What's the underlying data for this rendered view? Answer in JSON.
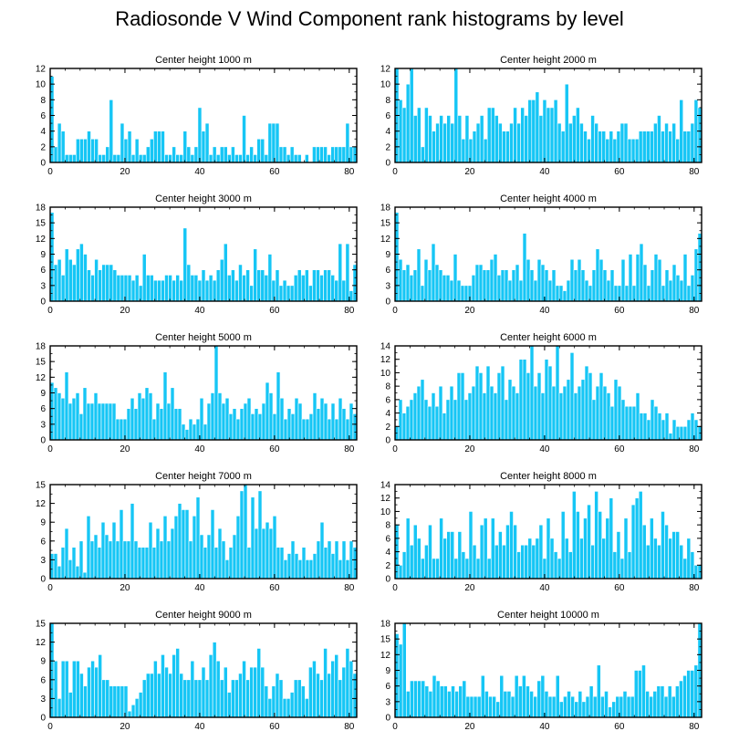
{
  "figure": {
    "title": "Radiosonde V Wind Component rank histograms by level"
  },
  "style": {
    "bar_color": "#16c6f5",
    "bar_stroke": "#ffffff",
    "axis_color": "#000000"
  },
  "chart_data": [
    {
      "type": "bar",
      "title": "Center height 1000 m",
      "x_ticks": [
        0,
        20,
        40,
        60,
        80
      ],
      "xlim": [
        0,
        82
      ],
      "ylim": [
        0,
        12
      ],
      "y_ticks": [
        0,
        2,
        4,
        6,
        8,
        10,
        12
      ],
      "values": [
        11,
        2,
        5,
        4,
        1,
        1,
        1,
        3,
        3,
        3,
        4,
        3,
        3,
        1,
        1,
        2,
        8,
        1,
        1,
        5,
        3,
        4,
        1,
        3,
        1,
        1,
        2,
        3,
        4,
        4,
        4,
        1,
        1,
        2,
        1,
        1,
        4,
        2,
        1,
        2,
        7,
        4,
        5,
        1,
        2,
        1,
        2,
        2,
        1,
        2,
        1,
        1,
        6,
        1,
        2,
        1,
        3,
        3,
        1,
        5,
        5,
        5,
        2,
        2,
        1,
        2,
        1,
        1,
        0,
        1,
        0,
        2,
        2,
        2,
        2,
        1,
        2,
        2,
        2,
        2,
        5,
        2,
        2
      ]
    },
    {
      "type": "bar",
      "title": "Center height 2000 m",
      "x_ticks": [
        0,
        20,
        40,
        60,
        80
      ],
      "xlim": [
        0,
        82
      ],
      "ylim": [
        0,
        12
      ],
      "y_ticks": [
        0,
        2,
        4,
        6,
        8,
        10,
        12
      ],
      "values": [
        12,
        8,
        7,
        10,
        12,
        6,
        7,
        2,
        7,
        6,
        4,
        5,
        6,
        5,
        6,
        5,
        12,
        6,
        3,
        6,
        3,
        4,
        5,
        6,
        3,
        7,
        7,
        6,
        5,
        4,
        4,
        5,
        7,
        5,
        7,
        6,
        8,
        8,
        9,
        6,
        8,
        7,
        7,
        8,
        5,
        4,
        10,
        5,
        6,
        7,
        5,
        4,
        3,
        6,
        5,
        4,
        4,
        3,
        4,
        3,
        4,
        5,
        5,
        3,
        3,
        3,
        4,
        4,
        4,
        4,
        5,
        6,
        4,
        5,
        4,
        5,
        3,
        8,
        4,
        4,
        5,
        8,
        7
      ]
    },
    {
      "type": "bar",
      "title": "Center height 3000 m",
      "x_ticks": [
        0,
        20,
        40,
        60,
        80
      ],
      "xlim": [
        0,
        82
      ],
      "ylim": [
        0,
        18
      ],
      "y_ticks": [
        0,
        3,
        6,
        9,
        12,
        15,
        18
      ],
      "values": [
        17,
        7,
        8,
        5,
        10,
        8,
        7,
        10,
        11,
        9,
        6,
        5,
        8,
        6,
        7,
        7,
        7,
        6,
        5,
        5,
        5,
        5,
        4,
        5,
        3,
        9,
        5,
        5,
        4,
        4,
        4,
        5,
        5,
        4,
        5,
        4,
        14,
        7,
        5,
        5,
        4,
        6,
        4,
        5,
        4,
        6,
        8,
        11,
        5,
        6,
        4,
        7,
        5,
        6,
        3,
        10,
        6,
        6,
        5,
        9,
        4,
        6,
        3,
        4,
        3,
        3,
        5,
        6,
        5,
        6,
        3,
        6,
        6,
        5,
        6,
        6,
        5,
        4,
        11,
        4,
        11,
        2,
        7
      ]
    },
    {
      "type": "bar",
      "title": "Center height 4000 m",
      "x_ticks": [
        0,
        20,
        40,
        60,
        80
      ],
      "xlim": [
        0,
        82
      ],
      "ylim": [
        0,
        18
      ],
      "y_ticks": [
        0,
        3,
        6,
        9,
        12,
        15,
        18
      ],
      "values": [
        17,
        8,
        6,
        7,
        5,
        6,
        10,
        3,
        8,
        6,
        11,
        7,
        6,
        5,
        5,
        4,
        9,
        4,
        3,
        3,
        3,
        5,
        7,
        7,
        6,
        6,
        8,
        9,
        5,
        6,
        6,
        4,
        6,
        7,
        4,
        13,
        8,
        6,
        4,
        8,
        7,
        6,
        4,
        6,
        3,
        3,
        2,
        4,
        8,
        6,
        8,
        6,
        4,
        3,
        6,
        10,
        8,
        6,
        4,
        6,
        3,
        3,
        8,
        3,
        9,
        3,
        9,
        11,
        7,
        3,
        6,
        9,
        8,
        3,
        6,
        4,
        7,
        5,
        4,
        9,
        3,
        5,
        10,
        13
      ]
    },
    {
      "type": "bar",
      "title": "Center height 5000 m",
      "x_ticks": [
        0,
        20,
        40,
        60,
        80
      ],
      "xlim": [
        0,
        82
      ],
      "ylim": [
        0,
        18
      ],
      "y_ticks": [
        0,
        3,
        6,
        9,
        12,
        15,
        18
      ],
      "values": [
        11,
        10,
        9,
        8,
        13,
        7,
        8,
        9,
        5,
        10,
        7,
        7,
        9,
        7,
        7,
        7,
        7,
        7,
        4,
        4,
        4,
        6,
        8,
        6,
        9,
        8,
        10,
        9,
        4,
        7,
        6,
        13,
        7,
        10,
        6,
        6,
        3,
        2,
        4,
        3,
        4,
        8,
        3,
        7,
        9,
        18,
        9,
        7,
        8,
        5,
        6,
        4,
        6,
        7,
        8,
        5,
        6,
        5,
        7,
        11,
        9,
        5,
        13,
        8,
        4,
        6,
        5,
        8,
        7,
        4,
        4,
        5,
        9,
        6,
        8,
        7,
        4,
        7,
        4,
        8,
        6,
        4,
        7,
        5
      ]
    },
    {
      "type": "bar",
      "title": "Center height 6000 m",
      "x_ticks": [
        0,
        20,
        40,
        60,
        80
      ],
      "xlim": [
        0,
        82
      ],
      "ylim": [
        0,
        14
      ],
      "y_ticks": [
        0,
        2,
        4,
        6,
        8,
        10,
        12,
        14
      ],
      "values": [
        2,
        6,
        4,
        5,
        6,
        7,
        8,
        9,
        6,
        5,
        7,
        5,
        8,
        4,
        6,
        8,
        6,
        10,
        10,
        6,
        7,
        8,
        11,
        10,
        7,
        11,
        8,
        7,
        10,
        11,
        6,
        9,
        8,
        7,
        12,
        12,
        10,
        14,
        8,
        10,
        7,
        12,
        11,
        8,
        14,
        7,
        8,
        9,
        13,
        7,
        8,
        9,
        11,
        10,
        6,
        8,
        10,
        8,
        7,
        5,
        9,
        8,
        6,
        5,
        5,
        5,
        7,
        4,
        4,
        3,
        6,
        5,
        4,
        3,
        4,
        1,
        3,
        2,
        2,
        2,
        3,
        4,
        3,
        2
      ]
    },
    {
      "type": "bar",
      "title": "Center height 7000 m",
      "x_ticks": [
        0,
        20,
        40,
        60,
        80
      ],
      "xlim": [
        0,
        82
      ],
      "ylim": [
        0,
        15
      ],
      "y_ticks": [
        0,
        3,
        6,
        9,
        12,
        15
      ],
      "values": [
        4,
        4,
        2,
        5,
        8,
        3,
        5,
        2,
        6,
        1,
        10,
        6,
        7,
        5,
        9,
        7,
        6,
        9,
        6,
        11,
        6,
        6,
        12,
        6,
        5,
        5,
        5,
        9,
        5,
        8,
        6,
        10,
        6,
        8,
        10,
        12,
        11,
        11,
        6,
        10,
        13,
        7,
        5,
        7,
        11,
        5,
        8,
        6,
        3,
        5,
        7,
        10,
        14,
        15,
        5,
        13,
        8,
        14,
        8,
        9,
        8,
        10,
        5,
        5,
        3,
        4,
        6,
        4,
        3,
        5,
        3,
        3,
        4,
        6,
        9,
        5,
        6,
        4,
        6,
        3,
        6,
        3,
        6,
        5
      ]
    },
    {
      "type": "bar",
      "title": "Center height 8000 m",
      "x_ticks": [
        0,
        20,
        40,
        60,
        80
      ],
      "xlim": [
        0,
        82
      ],
      "ylim": [
        0,
        14
      ],
      "y_ticks": [
        0,
        2,
        4,
        6,
        8,
        10,
        12,
        14
      ],
      "values": [
        8,
        2,
        4,
        9,
        5,
        8,
        6,
        3,
        5,
        8,
        3,
        3,
        9,
        6,
        7,
        7,
        3,
        7,
        4,
        3,
        10,
        5,
        3,
        8,
        9,
        3,
        9,
        5,
        7,
        5,
        8,
        10,
        8,
        4,
        5,
        5,
        6,
        5,
        6,
        8,
        3,
        9,
        6,
        4,
        3,
        10,
        6,
        4,
        13,
        10,
        6,
        9,
        11,
        5,
        13,
        10,
        6,
        9,
        12,
        4,
        7,
        3,
        9,
        4,
        11,
        12,
        13,
        8,
        5,
        9,
        6,
        5,
        10,
        8,
        6,
        7,
        7,
        5,
        3,
        6,
        4,
        2,
        2
      ]
    },
    {
      "type": "bar",
      "title": "Center height 9000 m",
      "x_ticks": [
        0,
        20,
        40,
        60,
        80
      ],
      "xlim": [
        0,
        82
      ],
      "ylim": [
        0,
        15
      ],
      "y_ticks": [
        0,
        3,
        6,
        9,
        12,
        15
      ],
      "values": [
        15,
        9,
        3,
        9,
        9,
        4,
        9,
        9,
        7,
        5,
        8,
        9,
        8,
        10,
        6,
        6,
        5,
        5,
        5,
        5,
        5,
        1,
        2,
        3,
        4,
        6,
        7,
        7,
        9,
        7,
        10,
        8,
        7,
        10,
        11,
        7,
        6,
        6,
        9,
        6,
        6,
        8,
        6,
        10,
        12,
        9,
        6,
        8,
        4,
        6,
        6,
        7,
        9,
        6,
        8,
        8,
        11,
        8,
        5,
        3,
        5,
        7,
        6,
        3,
        3,
        4,
        6,
        6,
        5,
        3,
        8,
        9,
        7,
        6,
        11,
        7,
        9,
        10,
        6,
        8,
        11,
        9,
        7
      ]
    },
    {
      "type": "bar",
      "title": "Center height 10000 m",
      "x_ticks": [
        0,
        20,
        40,
        60,
        80
      ],
      "xlim": [
        0,
        82
      ],
      "ylim": [
        0,
        18
      ],
      "y_ticks": [
        0,
        3,
        6,
        9,
        12,
        15,
        18
      ],
      "values": [
        16,
        14,
        18,
        5,
        7,
        7,
        7,
        7,
        6,
        5,
        8,
        7,
        6,
        6,
        5,
        6,
        5,
        6,
        7,
        4,
        4,
        4,
        4,
        8,
        5,
        4,
        4,
        3,
        8,
        5,
        5,
        4,
        8,
        6,
        8,
        6,
        5,
        4,
        7,
        8,
        5,
        4,
        4,
        8,
        3,
        4,
        5,
        4,
        3,
        5,
        3,
        4,
        6,
        4,
        10,
        4,
        5,
        2,
        3,
        4,
        4,
        5,
        4,
        4,
        9,
        9,
        10,
        5,
        4,
        5,
        6,
        6,
        4,
        6,
        4,
        6,
        7,
        8,
        9,
        9,
        10,
        18
      ]
    }
  ]
}
